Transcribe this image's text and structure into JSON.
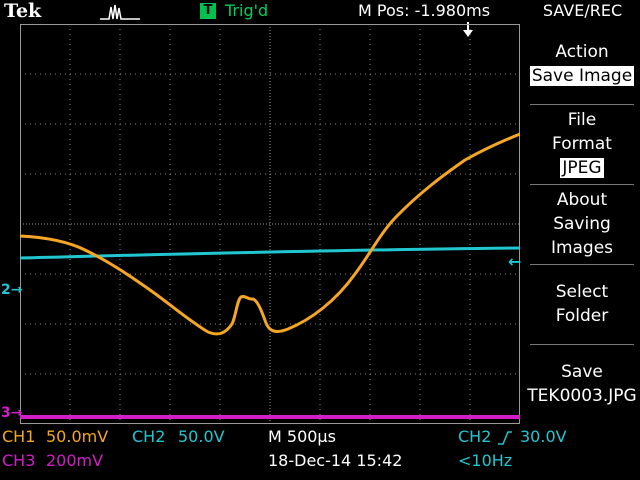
{
  "header": {
    "brand": "Tek",
    "trigger_icon": "T",
    "trigger_status": "Trig'd",
    "m_pos": "M Pos: -1.980ms",
    "menu_title": "SAVE/REC"
  },
  "menu": {
    "action_label": "Action",
    "action_value": "Save Image",
    "file_format_line1": "File",
    "file_format_line2": "Format",
    "file_format_value": "JPEG",
    "about_line1": "About",
    "about_line2": "Saving",
    "about_line3": "Images",
    "select_line1": "Select",
    "select_line2": "Folder",
    "save_line1": "Save",
    "save_line2": "TEK0003.JPG"
  },
  "markers": {
    "ch2": "2",
    "ch3": "3"
  },
  "footer": {
    "ch1_label": "CH1",
    "ch1_scale": "50.0mV",
    "ch2_label": "CH2",
    "ch2_scale": "50.0V",
    "timebase": "M 500µs",
    "trigger_source": "CH2",
    "trigger_level": "30.0V",
    "ch3_label": "CH3",
    "ch3_scale": "200mV",
    "date_time": "18-Dec-14 15:42",
    "frequency": "<10Hz"
  },
  "colors": {
    "ch1": "#f5a623",
    "ch2": "#22c6d0",
    "ch3": "#d21ec8",
    "grid": "#8a8a8a",
    "trigger_green": "#00c050"
  }
}
